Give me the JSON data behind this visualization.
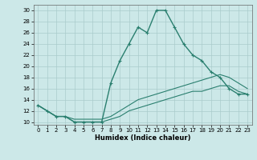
{
  "xlabel": "Humidex (Indice chaleur)",
  "ylabel": "",
  "bg_color": "#cce8e8",
  "grid_color": "#aacccc",
  "line_color": "#2a7f6f",
  "ylim": [
    9.5,
    31
  ],
  "xlim": [
    -0.5,
    23.5
  ],
  "yticks": [
    10,
    12,
    14,
    16,
    18,
    20,
    22,
    24,
    26,
    28,
    30
  ],
  "xticks": [
    0,
    1,
    2,
    3,
    4,
    5,
    6,
    7,
    8,
    9,
    10,
    11,
    12,
    13,
    14,
    15,
    16,
    17,
    18,
    19,
    20,
    21,
    22,
    23
  ],
  "series": [
    {
      "x": [
        0,
        1,
        2,
        3,
        4,
        5,
        6,
        7,
        8,
        9,
        10,
        11,
        12,
        13,
        14,
        15,
        16,
        17,
        18,
        19,
        20,
        21,
        22,
        23
      ],
      "y": [
        13,
        12,
        11,
        11,
        10,
        10,
        10,
        10,
        17,
        21,
        24,
        27,
        26,
        30,
        30,
        27,
        24,
        22,
        21,
        19,
        18,
        16,
        15,
        15
      ],
      "has_markers": true,
      "lw": 1.0
    },
    {
      "x": [
        0,
        1,
        2,
        3,
        4,
        5,
        6,
        7,
        8,
        9,
        10,
        11,
        12,
        13,
        14,
        15,
        16,
        17,
        18,
        19,
        20,
        21,
        22,
        23
      ],
      "y": [
        13,
        12,
        11,
        11,
        10.5,
        10.5,
        10.5,
        10.5,
        11,
        12,
        13,
        14,
        14.5,
        15,
        15.5,
        16,
        16.5,
        17,
        17.5,
        18,
        18.5,
        18,
        17,
        16
      ],
      "has_markers": false,
      "lw": 0.8
    },
    {
      "x": [
        0,
        1,
        2,
        3,
        4,
        5,
        6,
        7,
        8,
        9,
        10,
        11,
        12,
        13,
        14,
        15,
        16,
        17,
        18,
        19,
        20,
        21,
        22,
        23
      ],
      "y": [
        13,
        12,
        11,
        11,
        10,
        10,
        10,
        10,
        10.5,
        11,
        12,
        12.5,
        13,
        13.5,
        14,
        14.5,
        15,
        15.5,
        15.5,
        16,
        16.5,
        16.5,
        15.5,
        15
      ],
      "has_markers": false,
      "lw": 0.8
    }
  ]
}
